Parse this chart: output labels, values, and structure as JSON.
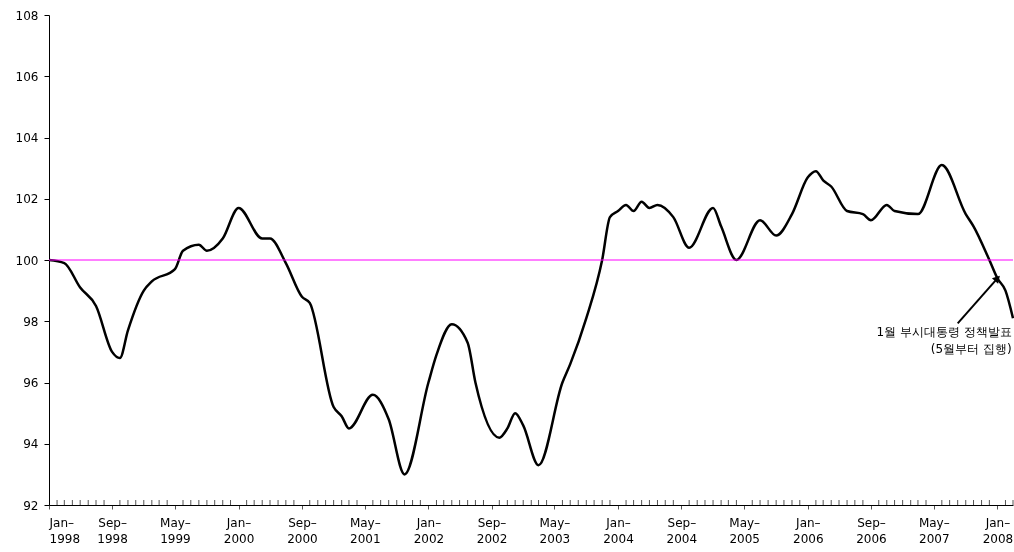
{
  "chart_data": {
    "type": "line",
    "x": [
      "1998-01",
      "1998-03",
      "1998-05",
      "1998-07",
      "1998-09",
      "1998-10",
      "1998-11",
      "1999-01",
      "1999-02",
      "1999-05",
      "1999-06",
      "1999-08",
      "1999-09",
      "1999-11",
      "2000-01",
      "2000-04",
      "2000-05",
      "2000-07",
      "2000-09",
      "2000-10",
      "2001-01",
      "2001-02",
      "2001-03",
      "2001-06",
      "2001-08",
      "2001-10",
      "2002-01",
      "2002-02",
      "2002-04",
      "2002-06",
      "2002-07",
      "2002-10",
      "2002-11",
      "2002-12",
      "2003-01",
      "2003-03",
      "2003-06",
      "2003-07",
      "2003-09",
      "2003-11",
      "2003-12",
      "2004-01",
      "2004-02",
      "2004-03",
      "2004-04",
      "2004-05",
      "2004-06",
      "2004-08",
      "2004-10",
      "2005-01",
      "2005-02",
      "2005-04",
      "2005-07",
      "2005-09",
      "2005-11",
      "2006-01",
      "2006-02",
      "2006-03",
      "2006-04",
      "2006-06",
      "2006-08",
      "2006-09",
      "2006-11",
      "2006-12",
      "2007-03",
      "2007-06",
      "2007-09",
      "2007-10",
      "2007-12",
      "2008-01",
      "2008-02",
      "2008-03"
    ],
    "series": [
      {
        "color": "#000000",
        "values": [
          100.0,
          99.9,
          99.1,
          98.5,
          97.0,
          96.8,
          97.7,
          99.0,
          99.3,
          99.7,
          100.3,
          100.5,
          100.3,
          100.7,
          101.7,
          100.7,
          100.7,
          99.9,
          98.8,
          98.6,
          95.2,
          94.9,
          94.5,
          95.6,
          94.8,
          93.0,
          96.0,
          96.9,
          97.9,
          97.3,
          96.0,
          94.2,
          94.5,
          95.0,
          94.6,
          93.3,
          96.0,
          96.6,
          98.1,
          100.0,
          101.4,
          101.6,
          101.8,
          101.6,
          101.9,
          101.7,
          101.8,
          101.4,
          100.4,
          101.7,
          101.1,
          100.0,
          101.3,
          100.8,
          101.5,
          102.7,
          102.9,
          102.6,
          102.4,
          101.6,
          101.5,
          101.3,
          101.8,
          101.6,
          101.5,
          103.1,
          101.5,
          101.1,
          100.0,
          99.4,
          99.0,
          98.1
        ]
      }
    ],
    "xlim": [
      "1998-01",
      "2008-03"
    ],
    "xticks": [
      {
        "value": "1998-01",
        "label": "Jan–\n1998"
      },
      {
        "value": "1998-02",
        "label": null
      },
      {
        "value": "1998-03",
        "label": null
      },
      {
        "value": "1998-04",
        "label": null
      },
      {
        "value": "1998-05",
        "label": null
      },
      {
        "value": "1998-06",
        "label": null
      },
      {
        "value": "1998-07",
        "label": null
      },
      {
        "value": "1998-08",
        "label": null
      },
      {
        "value": "1998-09",
        "label": "Sep–\n1998"
      },
      {
        "value": "1998-10",
        "label": null
      },
      {
        "value": "1998-11",
        "label": null
      },
      {
        "value": "1998-12",
        "label": null
      },
      {
        "value": "1999-01",
        "label": null
      },
      {
        "value": "1999-02",
        "label": null
      },
      {
        "value": "1999-03",
        "label": null
      },
      {
        "value": "1999-04",
        "label": null
      },
      {
        "value": "1999-05",
        "label": "May–\n1999"
      },
      {
        "value": "1999-06",
        "label": null
      },
      {
        "value": "1999-07",
        "label": null
      },
      {
        "value": "1999-08",
        "label": null
      },
      {
        "value": "1999-09",
        "label": null
      },
      {
        "value": "1999-10",
        "label": null
      },
      {
        "value": "1999-11",
        "label": null
      },
      {
        "value": "1999-12",
        "label": null
      },
      {
        "value": "2000-01",
        "label": "Jan–\n2000"
      },
      {
        "value": "2000-02",
        "label": null
      },
      {
        "value": "2000-03",
        "label": null
      },
      {
        "value": "2000-04",
        "label": null
      },
      {
        "value": "2000-05",
        "label": null
      },
      {
        "value": "2000-06",
        "label": null
      },
      {
        "value": "2000-07",
        "label": null
      },
      {
        "value": "2000-08",
        "label": null
      },
      {
        "value": "2000-09",
        "label": "Sep–\n2000"
      },
      {
        "value": "2000-10",
        "label": null
      },
      {
        "value": "2000-11",
        "label": null
      },
      {
        "value": "2000-12",
        "label": null
      },
      {
        "value": "2001-01",
        "label": null
      },
      {
        "value": "2001-02",
        "label": null
      },
      {
        "value": "2001-03",
        "label": null
      },
      {
        "value": "2001-04",
        "label": null
      },
      {
        "value": "2001-05",
        "label": "May–\n2001"
      },
      {
        "value": "2001-06",
        "label": null
      },
      {
        "value": "2001-07",
        "label": null
      },
      {
        "value": "2001-08",
        "label": null
      },
      {
        "value": "2001-09",
        "label": null
      },
      {
        "value": "2001-10",
        "label": null
      },
      {
        "value": "2001-11",
        "label": null
      },
      {
        "value": "2001-12",
        "label": null
      },
      {
        "value": "2002-01",
        "label": "Jan–\n2002"
      },
      {
        "value": "2002-02",
        "label": null
      },
      {
        "value": "2002-03",
        "label": null
      },
      {
        "value": "2002-04",
        "label": null
      },
      {
        "value": "2002-05",
        "label": null
      },
      {
        "value": "2002-06",
        "label": null
      },
      {
        "value": "2002-07",
        "label": null
      },
      {
        "value": "2002-08",
        "label": null
      },
      {
        "value": "2002-09",
        "label": "Sep–\n2002"
      },
      {
        "value": "2002-10",
        "label": null
      },
      {
        "value": "2002-11",
        "label": null
      },
      {
        "value": "2002-12",
        "label": null
      },
      {
        "value": "2003-01",
        "label": null
      },
      {
        "value": "2003-02",
        "label": null
      },
      {
        "value": "2003-03",
        "label": null
      },
      {
        "value": "2003-04",
        "label": null
      },
      {
        "value": "2003-05",
        "label": "May–\n2003"
      },
      {
        "value": "2003-06",
        "label": null
      },
      {
        "value": "2003-07",
        "label": null
      },
      {
        "value": "2003-08",
        "label": null
      },
      {
        "value": "2003-09",
        "label": null
      },
      {
        "value": "2003-10",
        "label": null
      },
      {
        "value": "2003-11",
        "label": null
      },
      {
        "value": "2003-12",
        "label": null
      },
      {
        "value": "2004-01",
        "label": "Jan–\n2004"
      },
      {
        "value": "2004-02",
        "label": null
      },
      {
        "value": "2004-03",
        "label": null
      },
      {
        "value": "2004-04",
        "label": null
      },
      {
        "value": "2004-05",
        "label": null
      },
      {
        "value": "2004-06",
        "label": null
      },
      {
        "value": "2004-07",
        "label": null
      },
      {
        "value": "2004-08",
        "label": null
      },
      {
        "value": "2004-09",
        "label": "Sep–\n2004"
      },
      {
        "value": "2004-10",
        "label": null
      },
      {
        "value": "2004-11",
        "label": null
      },
      {
        "value": "2004-12",
        "label": null
      },
      {
        "value": "2005-01",
        "label": null
      },
      {
        "value": "2005-02",
        "label": null
      },
      {
        "value": "2005-03",
        "label": null
      },
      {
        "value": "2005-04",
        "label": null
      },
      {
        "value": "2005-05",
        "label": "May–\n2005"
      },
      {
        "value": "2005-06",
        "label": null
      },
      {
        "value": "2005-07",
        "label": null
      },
      {
        "value": "2005-08",
        "label": null
      },
      {
        "value": "2005-09",
        "label": null
      },
      {
        "value": "2005-10",
        "label": null
      },
      {
        "value": "2005-11",
        "label": null
      },
      {
        "value": "2005-12",
        "label": null
      },
      {
        "value": "2006-01",
        "label": "Jan–\n2006"
      },
      {
        "value": "2006-02",
        "label": null
      },
      {
        "value": "2006-03",
        "label": null
      },
      {
        "value": "2006-04",
        "label": null
      },
      {
        "value": "2006-05",
        "label": null
      },
      {
        "value": "2006-06",
        "label": null
      },
      {
        "value": "2006-07",
        "label": null
      },
      {
        "value": "2006-08",
        "label": null
      },
      {
        "value": "2006-09",
        "label": "Sep–\n2006"
      },
      {
        "value": "2006-10",
        "label": null
      },
      {
        "value": "2006-11",
        "label": null
      },
      {
        "value": "2006-12",
        "label": null
      },
      {
        "value": "2007-01",
        "label": null
      },
      {
        "value": "2007-02",
        "label": null
      },
      {
        "value": "2007-03",
        "label": null
      },
      {
        "value": "2007-04",
        "label": null
      },
      {
        "value": "2007-05",
        "label": "May–\n2007"
      },
      {
        "value": "2007-06",
        "label": null
      },
      {
        "value": "2007-07",
        "label": null
      },
      {
        "value": "2007-08",
        "label": null
      },
      {
        "value": "2007-09",
        "label": null
      },
      {
        "value": "2007-10",
        "label": null
      },
      {
        "value": "2007-11",
        "label": null
      },
      {
        "value": "2007-12",
        "label": null
      },
      {
        "value": "2008-01",
        "label": "Jan–\n2008"
      },
      {
        "value": "2008-02",
        "label": null
      },
      {
        "value": "2008-03",
        "label": null
      }
    ],
    "ylim": [
      92,
      108
    ],
    "yticks": [
      92,
      94,
      96,
      98,
      100,
      102,
      104,
      106,
      108
    ],
    "ref_lines": [
      {
        "axis": "y",
        "value": 100,
        "color": "#ff00ff"
      }
    ],
    "annotations": [
      {
        "text": "1월 부시대통령 정책발표\n(5월부터 집행)",
        "x": "2008-01",
        "y": 99.4
      }
    ],
    "grid": false,
    "marker": "none",
    "line_style": "solid"
  }
}
